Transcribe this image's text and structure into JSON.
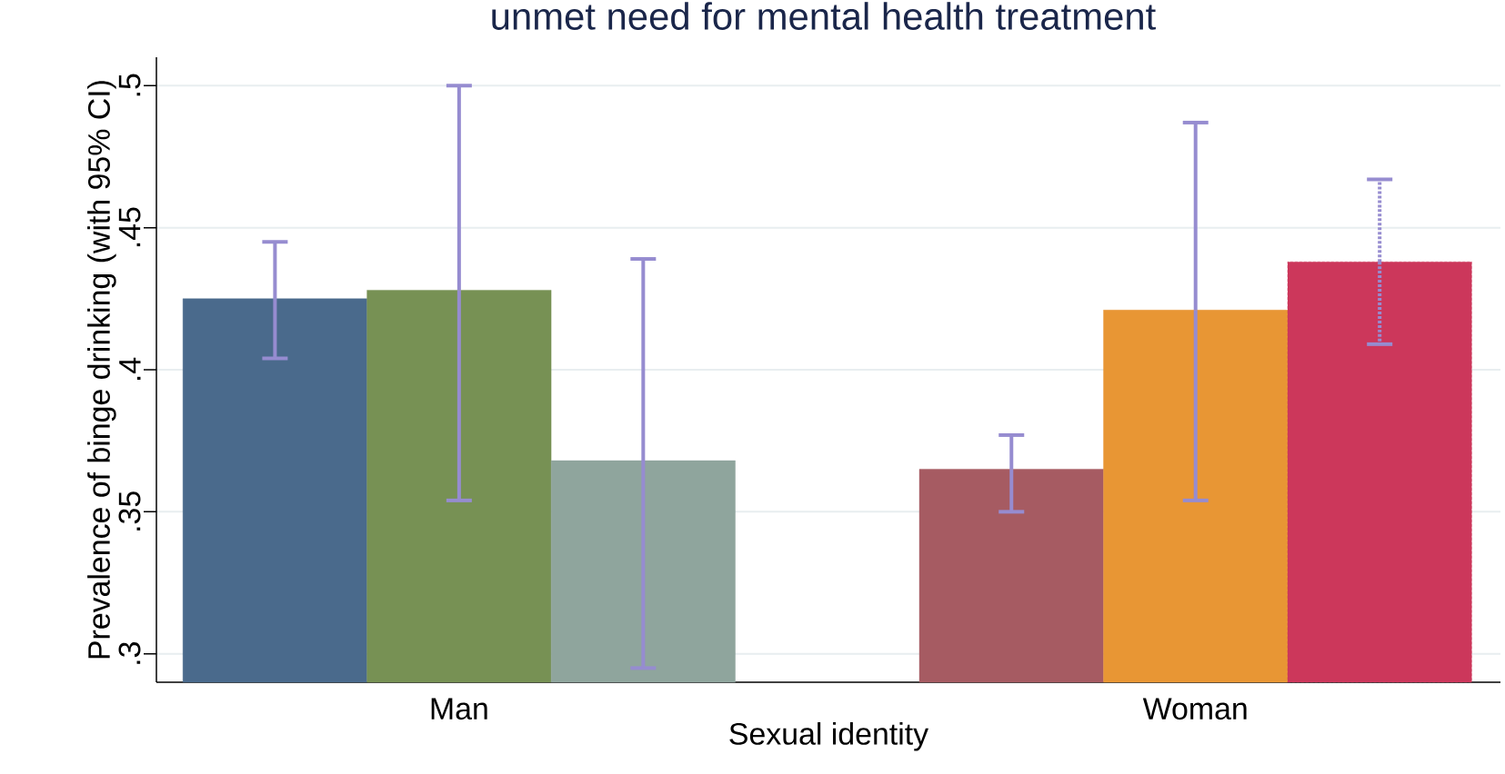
{
  "chart_data": {
    "type": "bar",
    "title": "unmet need for mental health treatment",
    "xlabel": "Sexual identity",
    "ylabel": "Prevalence of binge drinking (with 95% CI)",
    "categories": [
      "Man",
      "Woman"
    ],
    "series": [
      {
        "colors": [
          "#4a6a8c",
          "#a65b62"
        ],
        "values": [
          0.425,
          0.365
        ],
        "errors": [
          [
            0.404,
            0.445
          ],
          [
            0.35,
            0.377
          ]
        ]
      },
      {
        "colors": [
          "#779154",
          "#e89634"
        ],
        "values": [
          0.428,
          0.421
        ],
        "errors": [
          [
            0.354,
            0.5
          ],
          [
            0.354,
            0.487
          ]
        ]
      },
      {
        "colors": [
          "#8fa59d",
          "#cc375b"
        ],
        "values": [
          0.368,
          0.438
        ],
        "errors": [
          [
            0.295,
            0.439
          ],
          [
            0.409,
            0.467
          ]
        ]
      }
    ],
    "ylim": [
      0.29,
      0.51
    ],
    "yticks": [
      {
        "value": 0.3,
        "label": ".3"
      },
      {
        "value": 0.35,
        "label": ".35"
      },
      {
        "value": 0.4,
        "label": ".4"
      },
      {
        "value": 0.45,
        "label": ".45"
      },
      {
        "value": 0.5,
        "label": ".5"
      }
    ],
    "grid": "y"
  }
}
